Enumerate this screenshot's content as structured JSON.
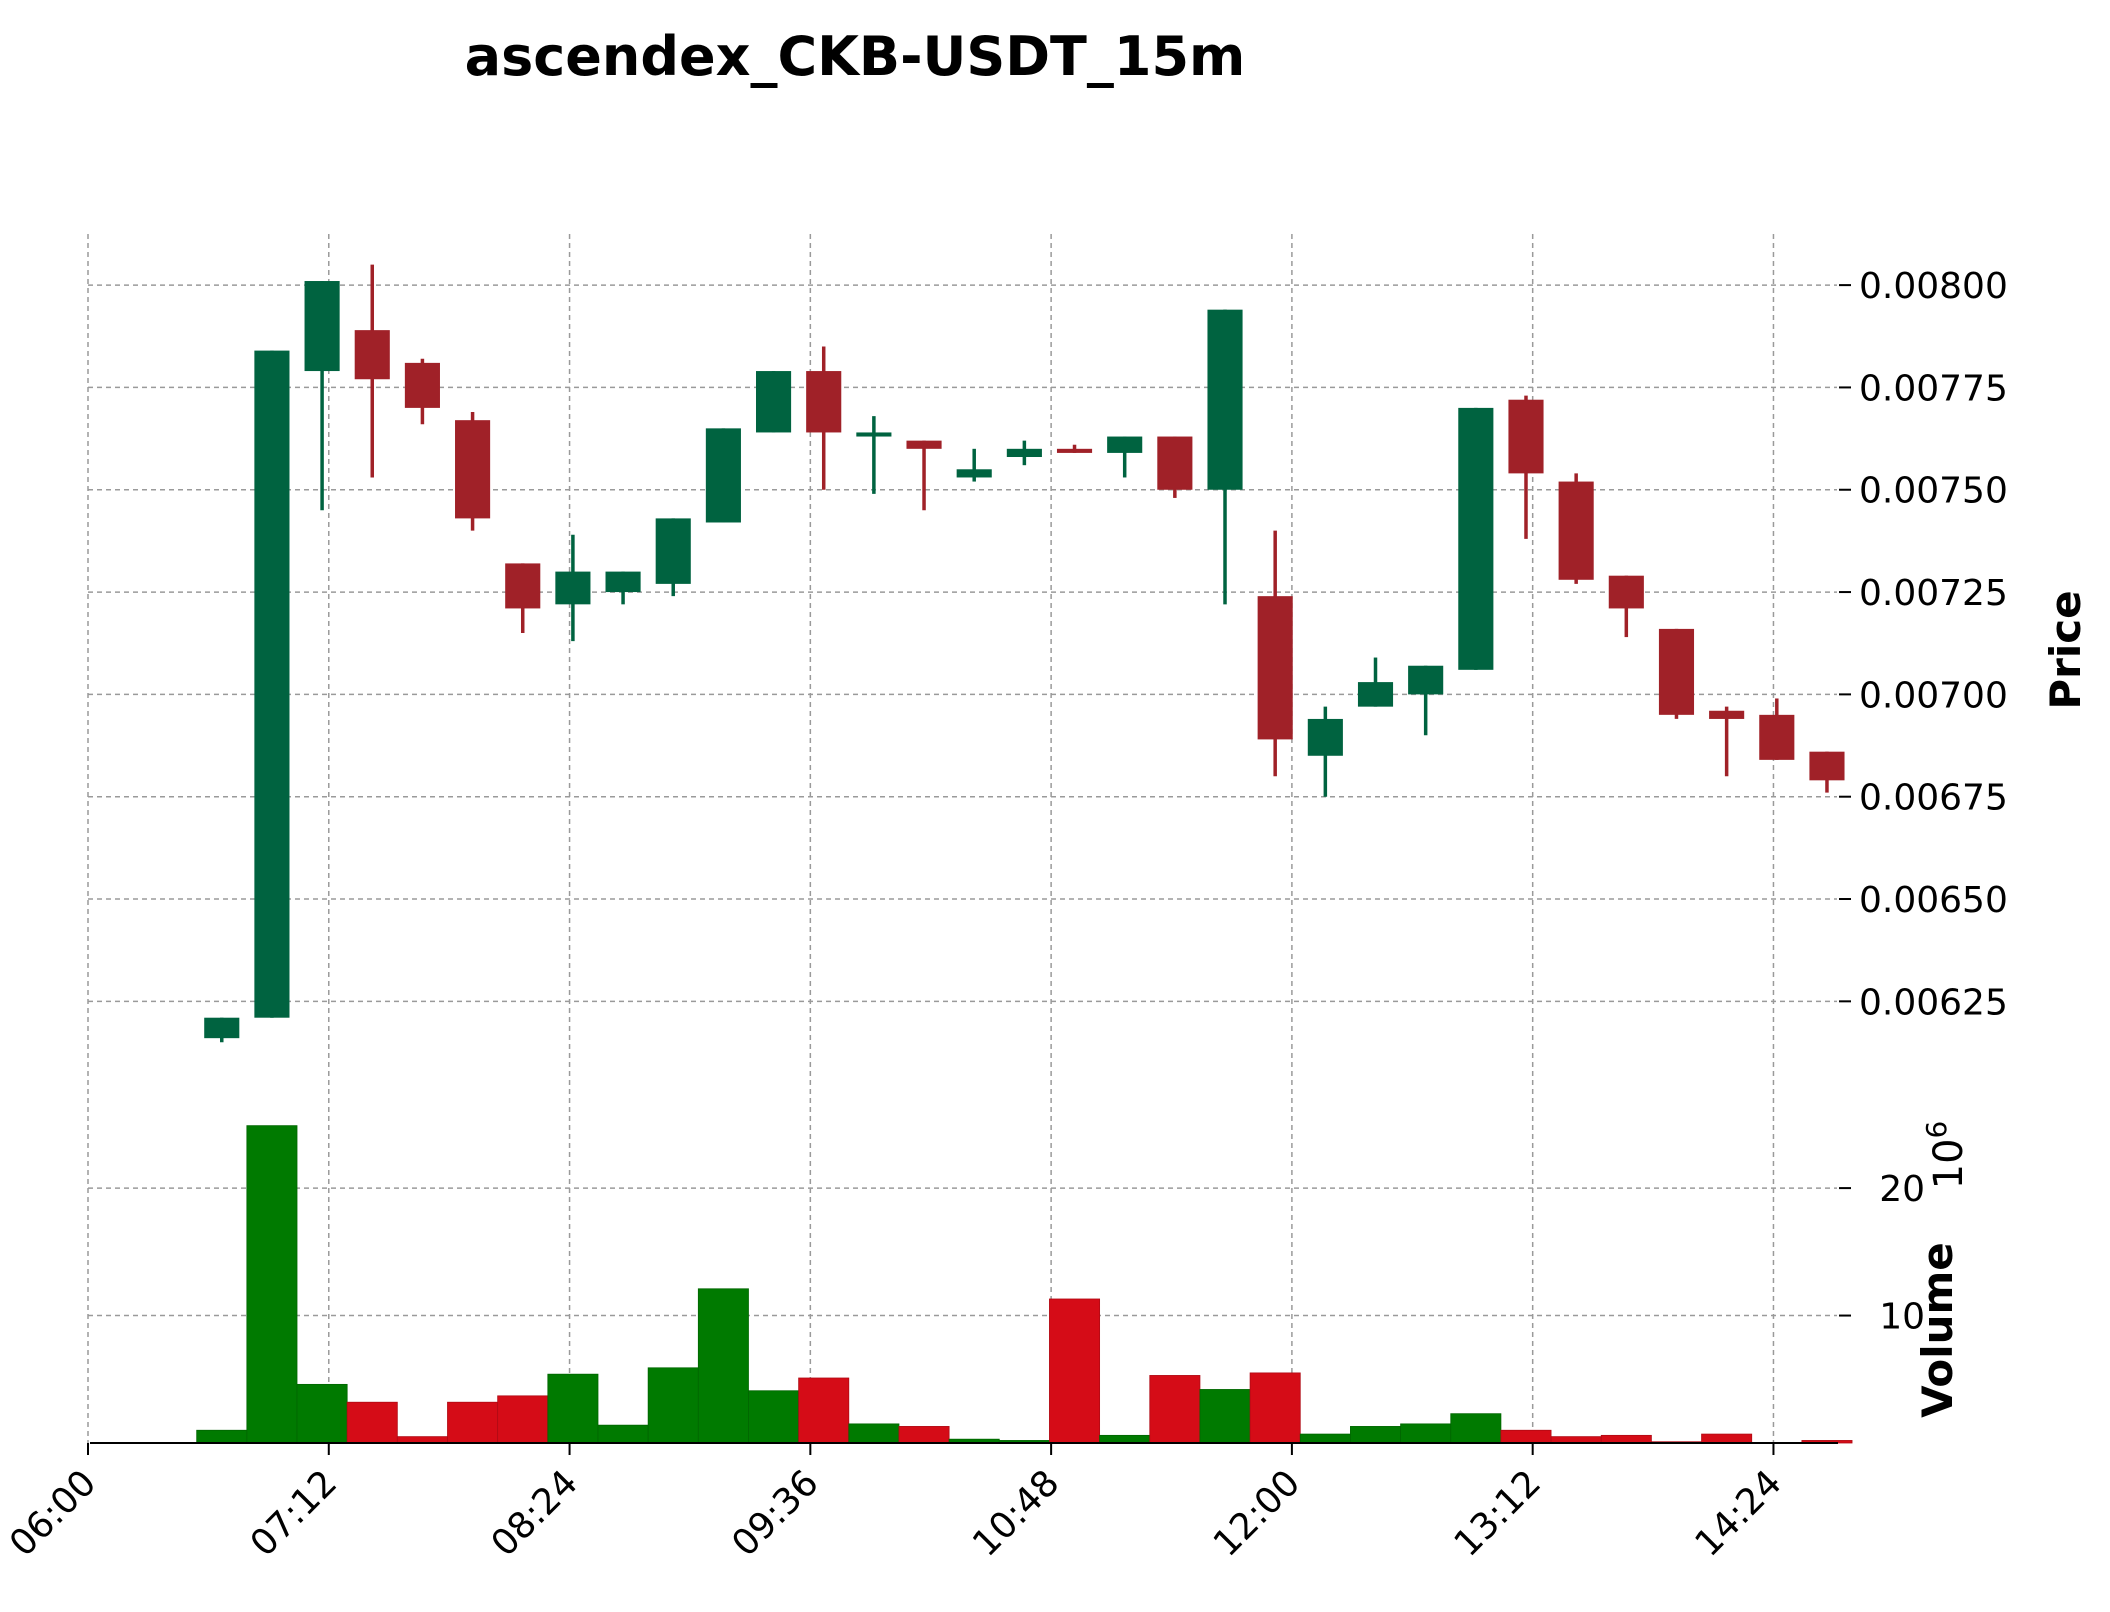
{
  "chart_data": {
    "type": "candlestick",
    "title": "ascendex_CKB-USDT_15m",
    "ylabel_price": "Price",
    "ylabel_volume": "Volume",
    "volume_exponent": "10",
    "volume_exponent_power": "6",
    "price_ylim": [
      0.00607,
      0.00812
    ],
    "volume_ylim": [
      0,
      25.5
    ],
    "x_range_minutes": [
      360,
      883
    ],
    "x_ticks": [
      {
        "label": "06:00",
        "t": 360
      },
      {
        "label": "07:12",
        "t": 432
      },
      {
        "label": "08:24",
        "t": 504
      },
      {
        "label": "09:36",
        "t": 576
      },
      {
        "label": "10:48",
        "t": 648
      },
      {
        "label": "12:00",
        "t": 720
      },
      {
        "label": "13:12",
        "t": 792
      },
      {
        "label": "14:24",
        "t": 864
      }
    ],
    "price_ticks": [
      {
        "label": "0.00625",
        "v": 0.00625
      },
      {
        "label": "0.00650",
        "v": 0.0065
      },
      {
        "label": "0.00675",
        "v": 0.00675
      },
      {
        "label": "0.00700",
        "v": 0.007
      },
      {
        "label": "0.00725",
        "v": 0.00725
      },
      {
        "label": "0.00750",
        "v": 0.0075
      },
      {
        "label": "0.00775",
        "v": 0.00775
      },
      {
        "label": "0.00800",
        "v": 0.008
      }
    ],
    "volume_ticks": [
      {
        "label": "10",
        "v": 10
      },
      {
        "label": "20",
        "v": 20
      }
    ],
    "candles": [
      {
        "time": "06:40",
        "t": 400,
        "open": 0.00616,
        "high": 0.00621,
        "low": 0.00615,
        "close": 0.00621,
        "volume": 1.0
      },
      {
        "time": "06:55",
        "t": 415,
        "open": 0.00621,
        "high": 0.00784,
        "low": 0.00621,
        "close": 0.00784,
        "volume": 24.9
      },
      {
        "time": "07:10",
        "t": 430,
        "open": 0.00779,
        "high": 0.00801,
        "low": 0.00745,
        "close": 0.00801,
        "volume": 4.6
      },
      {
        "time": "07:25",
        "t": 445,
        "open": 0.00789,
        "high": 0.00805,
        "low": 0.00753,
        "close": 0.00777,
        "volume": 3.2
      },
      {
        "time": "07:40",
        "t": 460,
        "open": 0.00781,
        "high": 0.00782,
        "low": 0.00766,
        "close": 0.0077,
        "volume": 0.5
      },
      {
        "time": "07:55",
        "t": 475,
        "open": 0.00767,
        "high": 0.00769,
        "low": 0.0074,
        "close": 0.00743,
        "volume": 3.2
      },
      {
        "time": "08:10",
        "t": 490,
        "open": 0.00732,
        "high": 0.00732,
        "low": 0.00715,
        "close": 0.00721,
        "volume": 3.7
      },
      {
        "time": "08:25",
        "t": 505,
        "open": 0.00722,
        "high": 0.00739,
        "low": 0.00713,
        "close": 0.0073,
        "volume": 5.4
      },
      {
        "time": "08:40",
        "t": 520,
        "open": 0.00725,
        "high": 0.0073,
        "low": 0.00722,
        "close": 0.0073,
        "volume": 1.4
      },
      {
        "time": "08:55",
        "t": 535,
        "open": 0.00727,
        "high": 0.00743,
        "low": 0.00724,
        "close": 0.00743,
        "volume": 5.9
      },
      {
        "time": "09:10",
        "t": 550,
        "open": 0.00742,
        "high": 0.00765,
        "low": 0.00742,
        "close": 0.00765,
        "volume": 12.1
      },
      {
        "time": "09:25",
        "t": 565,
        "open": 0.00764,
        "high": 0.00779,
        "low": 0.00764,
        "close": 0.00779,
        "volume": 4.1
      },
      {
        "time": "09:40",
        "t": 580,
        "open": 0.00779,
        "high": 0.00785,
        "low": 0.0075,
        "close": 0.00764,
        "volume": 5.1
      },
      {
        "time": "09:55",
        "t": 595,
        "open": 0.00763,
        "high": 0.00768,
        "low": 0.00749,
        "close": 0.00764,
        "volume": 1.5
      },
      {
        "time": "10:10",
        "t": 610,
        "open": 0.00762,
        "high": 0.00762,
        "low": 0.00745,
        "close": 0.0076,
        "volume": 1.3
      },
      {
        "time": "10:25",
        "t": 625,
        "open": 0.00753,
        "high": 0.0076,
        "low": 0.00752,
        "close": 0.00755,
        "volume": 0.3
      },
      {
        "time": "10:40",
        "t": 640,
        "open": 0.00758,
        "high": 0.00762,
        "low": 0.00756,
        "close": 0.0076,
        "volume": 0.2
      },
      {
        "time": "10:55",
        "t": 655,
        "open": 0.0076,
        "high": 0.00761,
        "low": 0.00759,
        "close": 0.00759,
        "volume": 11.3
      },
      {
        "time": "11:10",
        "t": 670,
        "open": 0.00759,
        "high": 0.00763,
        "low": 0.00753,
        "close": 0.00763,
        "volume": 0.6
      },
      {
        "time": "11:25",
        "t": 685,
        "open": 0.00763,
        "high": 0.00763,
        "low": 0.00748,
        "close": 0.0075,
        "volume": 5.3
      },
      {
        "time": "11:40",
        "t": 700,
        "open": 0.0075,
        "high": 0.00794,
        "low": 0.00722,
        "close": 0.00794,
        "volume": 4.2
      },
      {
        "time": "11:55",
        "t": 715,
        "open": 0.00724,
        "high": 0.0074,
        "low": 0.0068,
        "close": 0.00689,
        "volume": 5.5
      },
      {
        "time": "12:10",
        "t": 730,
        "open": 0.00685,
        "high": 0.00697,
        "low": 0.00675,
        "close": 0.00694,
        "volume": 0.7
      },
      {
        "time": "12:25",
        "t": 745,
        "open": 0.00697,
        "high": 0.00709,
        "low": 0.00697,
        "close": 0.00703,
        "volume": 1.3
      },
      {
        "time": "12:40",
        "t": 760,
        "open": 0.007,
        "high": 0.00707,
        "low": 0.0069,
        "close": 0.00707,
        "volume": 1.5
      },
      {
        "time": "12:55",
        "t": 775,
        "open": 0.00706,
        "high": 0.0077,
        "low": 0.00706,
        "close": 0.0077,
        "volume": 2.3
      },
      {
        "time": "13:10",
        "t": 790,
        "open": 0.00772,
        "high": 0.00773,
        "low": 0.00738,
        "close": 0.00754,
        "volume": 1.0
      },
      {
        "time": "13:25",
        "t": 805,
        "open": 0.00752,
        "high": 0.00754,
        "low": 0.00727,
        "close": 0.00728,
        "volume": 0.5
      },
      {
        "time": "13:40",
        "t": 820,
        "open": 0.00729,
        "high": 0.00729,
        "low": 0.00714,
        "close": 0.00721,
        "volume": 0.6
      },
      {
        "time": "13:55",
        "t": 835,
        "open": 0.00716,
        "high": 0.00716,
        "low": 0.00694,
        "close": 0.00695,
        "volume": 0.1
      },
      {
        "time": "14:10",
        "t": 850,
        "open": 0.00696,
        "high": 0.00697,
        "low": 0.0068,
        "close": 0.00694,
        "volume": 0.7
      },
      {
        "time": "14:25",
        "t": 865,
        "open": 0.00695,
        "high": 0.00699,
        "low": 0.00684,
        "close": 0.00684,
        "volume": 0.0
      },
      {
        "time": "14:40",
        "t": 880,
        "open": 0.00686,
        "high": 0.00686,
        "low": 0.00676,
        "close": 0.00679,
        "volume": 0.2
      }
    ],
    "colors": {
      "price_up": "#006340",
      "price_down": "#a02128",
      "volume_up": "#007a00",
      "volume_down": "#d50c17",
      "grid": "#9a9a9a"
    },
    "grid": true
  }
}
